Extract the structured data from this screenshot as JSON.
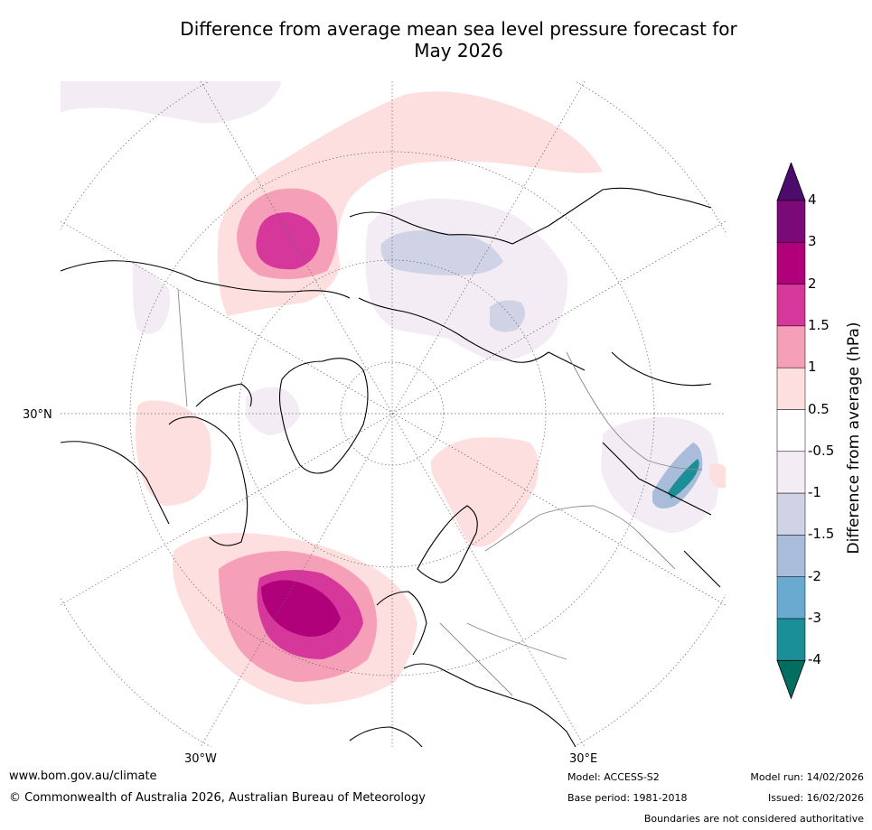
{
  "title_line1": "Difference from average mean sea level pressure forecast for",
  "title_line2": "May 2026",
  "map": {
    "projection_note": "North polar stereographic",
    "lat_label_left": "30°N",
    "lon_label_1": "30°W",
    "lon_label_2": "30°E"
  },
  "colorbar": {
    "title": "Difference from average (hPa)",
    "labels": [
      "4",
      "3",
      "2",
      "1.5",
      "1",
      "0.5",
      "-0.5",
      "-1",
      "-1.5",
      "-2",
      "-3",
      "-4"
    ],
    "colors": [
      "#4d0b6e",
      "#7a0a78",
      "#b0007a",
      "#d6379a",
      "#f59fb8",
      "#fddfdf",
      "#ffffff",
      "#f3ecf4",
      "#d0d2e6",
      "#a9bcd9",
      "#6aaad0",
      "#1b8f98",
      "#006f5f"
    ]
  },
  "footer": {
    "website": "www.bom.gov.au/climate",
    "copyright": "© Commonwealth of Australia 2026, Australian Bureau of Meteorology",
    "model": "Model: ACCESS-S2",
    "base_period": "Base period: 1981-2018",
    "model_run": "Model run: 14/02/2026",
    "issued": "Issued: 16/02/2026",
    "disclaimer": "Boundaries are not considered authoritative"
  }
}
